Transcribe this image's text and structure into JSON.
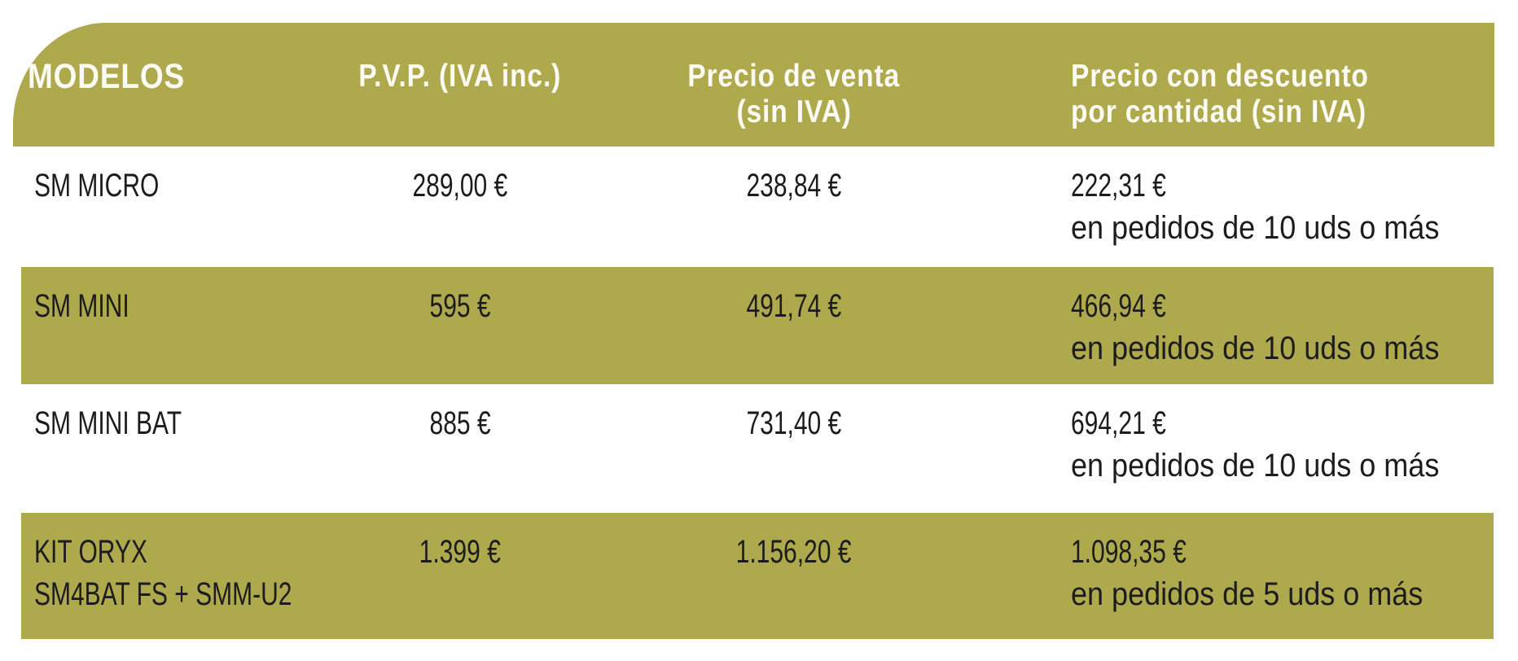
{
  "colors": {
    "olive": "#AEA94D",
    "header_text": "#FCFBF3",
    "body_text": "#1C1C1C",
    "background": "#FFFFFF"
  },
  "header": {
    "modelos": "MODELOS",
    "pvp": "P.V.P. (IVA inc.)",
    "venta_line1": "Precio de venta",
    "venta_line2": "(sin IVA)",
    "descuento_line1": "Precio con descuento",
    "descuento_line2": "por cantidad (sin IVA)"
  },
  "rows": [
    {
      "model_line1": "SM MICRO",
      "model_line2": "",
      "pvp": "289,00 €",
      "precio_venta": "238,84 €",
      "precio_descuento": "222,31 €",
      "descuento_nota": "en pedidos de 10 uds o más",
      "highlighted": false
    },
    {
      "model_line1": "SM MINI",
      "model_line2": "",
      "pvp": "595 €",
      "precio_venta": "491,74 €",
      "precio_descuento": "466,94 €",
      "descuento_nota": "en pedidos de 10 uds o más",
      "highlighted": true
    },
    {
      "model_line1": "SM MINI BAT",
      "model_line2": "",
      "pvp": "885 €",
      "precio_venta": "731,40 €",
      "precio_descuento": "694,21 €",
      "descuento_nota": "en pedidos de 10 uds o más",
      "highlighted": false
    },
    {
      "model_line1": "KIT ORYX",
      "model_line2": "SM4BAT FS + SMM-U2",
      "pvp": "1.399 €",
      "precio_venta": "1.156,20 €",
      "precio_descuento": "1.098,35 €",
      "descuento_nota": "en pedidos de 5 uds o más",
      "highlighted": true
    }
  ]
}
